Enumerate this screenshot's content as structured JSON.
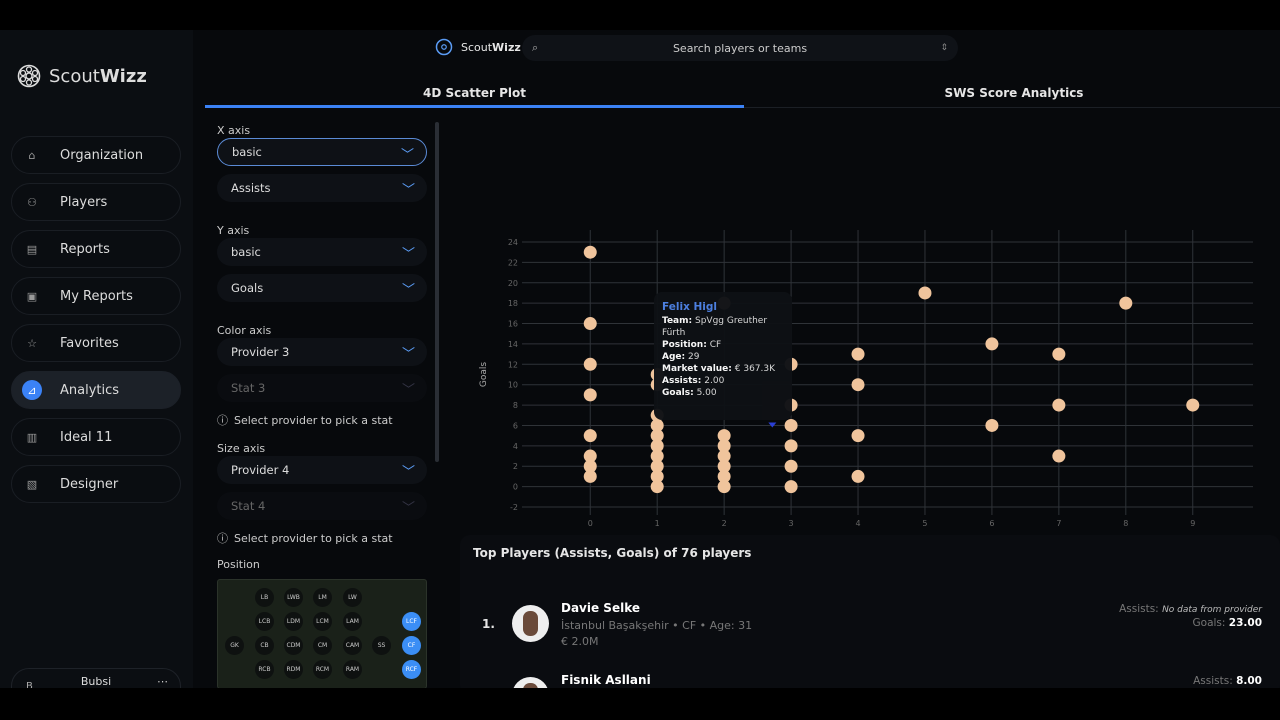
{
  "app": {
    "name_light": "Scout",
    "name_bold": "Wizz"
  },
  "search": {
    "placeholder": "Search players or teams"
  },
  "sidebar": {
    "items": [
      {
        "label": "Organization",
        "icon": "home-icon"
      },
      {
        "label": "Players",
        "icon": "player-icon"
      },
      {
        "label": "Reports",
        "icon": "report-icon"
      },
      {
        "label": "My Reports",
        "icon": "my-report-icon"
      },
      {
        "label": "Favorites",
        "icon": "star-icon"
      },
      {
        "label": "Analytics",
        "icon": "analytics-icon",
        "active": true
      },
      {
        "label": "Ideal 11",
        "icon": "ideal-icon"
      },
      {
        "label": "Designer",
        "icon": "designer-icon"
      }
    ],
    "user": {
      "name": "Bubsi",
      "initial": "B"
    }
  },
  "tabs": [
    {
      "label": "4D Scatter Plot",
      "active": true
    },
    {
      "label": "SWS Score Analytics"
    }
  ],
  "controls": {
    "x_axis": {
      "label": "X axis",
      "group": "basic",
      "stat": "Assists"
    },
    "y_axis": {
      "label": "Y axis",
      "group": "basic",
      "stat": "Goals"
    },
    "color_axis": {
      "label": "Color axis",
      "provider": "Provider 3",
      "stat": "Stat 3",
      "hint": "Select provider to pick a stat"
    },
    "size_axis": {
      "label": "Size axis",
      "provider": "Provider 4",
      "stat": "Stat 4",
      "hint": "Select provider to pick a stat"
    },
    "position": {
      "label": "Position",
      "rows": [
        [
          "LB",
          "LWB",
          "LM",
          "LW"
        ],
        [
          "LCB",
          "LDM",
          "LCM",
          "LAM",
          "LCF"
        ],
        [
          "GK",
          "CB",
          "CDM",
          "CM",
          "CAM",
          "SS",
          "CF"
        ],
        [
          "RCB",
          "RDM",
          "RCM",
          "RAM",
          "RCF"
        ]
      ],
      "selected": [
        "LCF",
        "CF",
        "RCF"
      ]
    }
  },
  "chart_data": {
    "type": "scatter",
    "xlabel": "Assists",
    "ylabel": "Goals",
    "xlim": [
      -0.9,
      9.9
    ],
    "ylim": [
      -2,
      24
    ],
    "xticks": [
      0,
      1,
      2,
      3,
      4,
      5,
      6,
      7,
      8,
      9
    ],
    "yticks": [
      -2,
      0,
      2,
      4,
      6,
      8,
      10,
      12,
      14,
      16,
      18,
      20,
      22,
      24
    ],
    "grid": true,
    "point_color": "#f0c49c",
    "points": [
      [
        0,
        23
      ],
      [
        0,
        16
      ],
      [
        0,
        12
      ],
      [
        0,
        9
      ],
      [
        0,
        5
      ],
      [
        0,
        3
      ],
      [
        0,
        2
      ],
      [
        0,
        1
      ],
      [
        1,
        11
      ],
      [
        1,
        10
      ],
      [
        1,
        7
      ],
      [
        1,
        6
      ],
      [
        1,
        5
      ],
      [
        1,
        4
      ],
      [
        1,
        3
      ],
      [
        1,
        2
      ],
      [
        1,
        1
      ],
      [
        1,
        0
      ],
      [
        2,
        18
      ],
      [
        2,
        5
      ],
      [
        2,
        4
      ],
      [
        2,
        3
      ],
      [
        2,
        2
      ],
      [
        2,
        1
      ],
      [
        2,
        0
      ],
      [
        3,
        12
      ],
      [
        3,
        8
      ],
      [
        3,
        6
      ],
      [
        3,
        4
      ],
      [
        3,
        2
      ],
      [
        3,
        0
      ],
      [
        4,
        13
      ],
      [
        4,
        10
      ],
      [
        4,
        5
      ],
      [
        4,
        1
      ],
      [
        5,
        19
      ],
      [
        6,
        14
      ],
      [
        6,
        6
      ],
      [
        7,
        13
      ],
      [
        7,
        8
      ],
      [
        7,
        3
      ],
      [
        8,
        18
      ],
      [
        9,
        8
      ]
    ]
  },
  "tooltip": {
    "name": "Felix Higl",
    "team_label": "Team:",
    "team": "SpVgg Greuther Fürth",
    "position_label": "Position:",
    "position": "CF",
    "age_label": "Age:",
    "age": "29",
    "value_label": "Market value:",
    "value": "€ 367.3K",
    "assists_label": "Assists:",
    "assists": "2.00",
    "goals_label": "Goals:",
    "goals": "5.00"
  },
  "top_players": {
    "title": "Top Players (Assists, Goals) of 76 players",
    "players": [
      {
        "rank": "1.",
        "name": "Davie Selke",
        "meta": "İstanbul Başakşehir • CF • Age: 31",
        "value": "€ 2.0M",
        "assists_label": "Assists:",
        "assists": "No data from provider",
        "goals_label": "Goals:",
        "goals": "23.00"
      },
      {
        "rank": "2.",
        "name": "Fisnik Asllani",
        "assists_label": "Assists:",
        "assists": "8.00"
      }
    ]
  }
}
